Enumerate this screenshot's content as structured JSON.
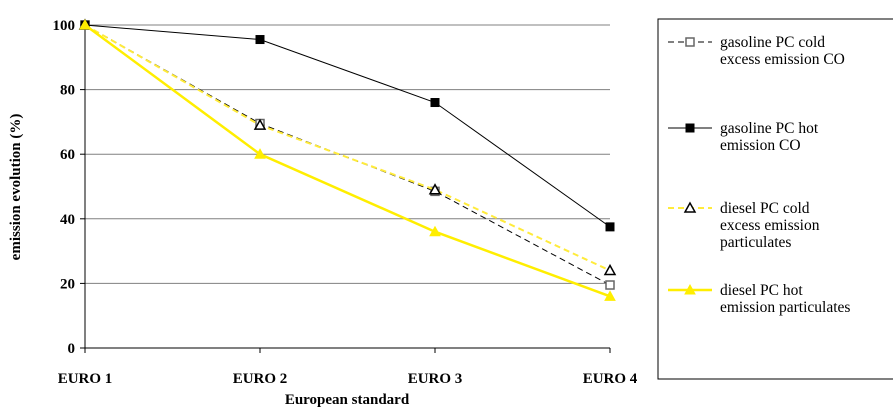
{
  "chart_data": {
    "type": "line",
    "title": "",
    "xlabel": "European standard",
    "ylabel": "emission evolution (%)",
    "categories": [
      "EURO 1",
      "EURO 2",
      "EURO 3",
      "EURO 4"
    ],
    "ylim": [
      0,
      100
    ],
    "yticks": [
      0,
      20,
      40,
      60,
      80,
      100
    ],
    "grid": true,
    "legend_position": "right",
    "series": [
      {
        "name": "gasoline PC  cold excess emission CO",
        "legend_lines": [
          "gasoline PC  cold",
          "excess emission CO"
        ],
        "values": [
          100,
          69.5,
          48.5,
          19.5
        ],
        "color": "#000000",
        "dashed": true,
        "marker": "open-square",
        "marker_fill": "#ffffff",
        "marker_stroke": "#666666",
        "line_width": 1
      },
      {
        "name": "gasoline PC  hot emission CO",
        "legend_lines": [
          "gasoline PC  hot",
          "emission CO"
        ],
        "values": [
          100,
          95.5,
          76,
          37.5
        ],
        "color": "#000000",
        "dashed": false,
        "marker": "filled-square",
        "marker_fill": "#000000",
        "marker_stroke": "#000000",
        "line_width": 1
      },
      {
        "name": "diesel PC  cold excess emission particulates",
        "legend_lines": [
          "diesel PC  cold",
          "excess emission",
          "particulates"
        ],
        "values": [
          100,
          69,
          49,
          24
        ],
        "color": "#ffeb3b",
        "dashed": true,
        "marker": "open-triangle",
        "marker_fill": "#ffffff",
        "marker_stroke": "#000000",
        "line_width": 2
      },
      {
        "name": "diesel PC  hot emission particulates",
        "legend_lines": [
          "diesel PC  hot",
          "emission particulates"
        ],
        "values": [
          100,
          60,
          36,
          16
        ],
        "color": "#ffee00",
        "dashed": false,
        "marker": "filled-triangle",
        "marker_fill": "#ffee00",
        "marker_stroke": "#ffee00",
        "line_width": 2.5
      }
    ]
  }
}
